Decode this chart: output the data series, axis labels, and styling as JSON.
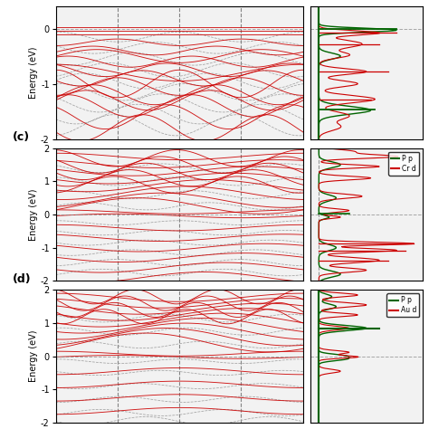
{
  "rows": 3,
  "panel_labels": [
    "",
    "(c)",
    "(d)"
  ],
  "ylims_row0": [
    -2,
    0.4
  ],
  "ylims_row1": [
    -2,
    2
  ],
  "ylims_row2": [
    -2,
    2
  ],
  "yticks_row0": [
    -2,
    -1,
    0
  ],
  "yticks_row12": [
    -2,
    -1,
    0,
    1,
    2
  ],
  "legend_c": {
    "labels": [
      "P p",
      "Cr d"
    ],
    "colors": [
      "#006400",
      "#cc0000"
    ]
  },
  "legend_d": {
    "labels": [
      "P p",
      "Au d"
    ],
    "colors": [
      "#006400",
      "#cc0000"
    ]
  },
  "bg_color": "#ffffff",
  "bs_bg": "#f0f0f0",
  "red_color": "#cc0000",
  "green_color": "#006400",
  "gray_color": "#888888",
  "dashed_color": "#555555",
  "vline_positions": [
    0.25,
    0.5,
    0.75
  ],
  "dos_xlim": [
    -1,
    12
  ],
  "num_kpoints": 120
}
